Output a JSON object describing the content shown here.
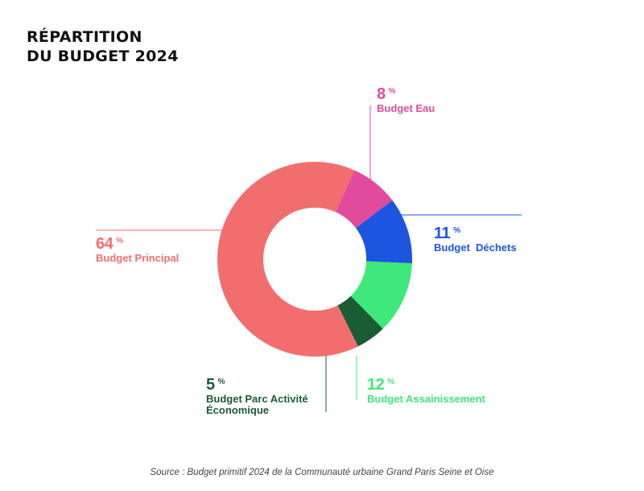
{
  "title_line1": "RÉPARTITION",
  "title_line2": "DU BUDGET 2024",
  "source": "Source : Budget primitif  2024 de la Communauté urbaine Grand Paris Seine et Oise",
  "chart_data": {
    "type": "pie",
    "donut": true,
    "title": "RÉPARTITION DU BUDGET 2024",
    "percent_symbol": "%",
    "slices": [
      {
        "name": "Budget Eau",
        "value": 8,
        "display_value": "8",
        "color": "#e24a9c"
      },
      {
        "name": "Budget  Déchets",
        "value": 11,
        "display_value": "11",
        "color": "#1c55e0"
      },
      {
        "name": "Budget Assainissement",
        "value": 12,
        "display_value": "12",
        "color": "#3ee87a"
      },
      {
        "name": "Budget Parc Activité Économique",
        "value": 5,
        "display_value": "5",
        "color": "#1a5c34"
      },
      {
        "name": "Budget Principal",
        "value": 64,
        "display_value": "64",
        "color": "#f26e6e"
      }
    ]
  }
}
